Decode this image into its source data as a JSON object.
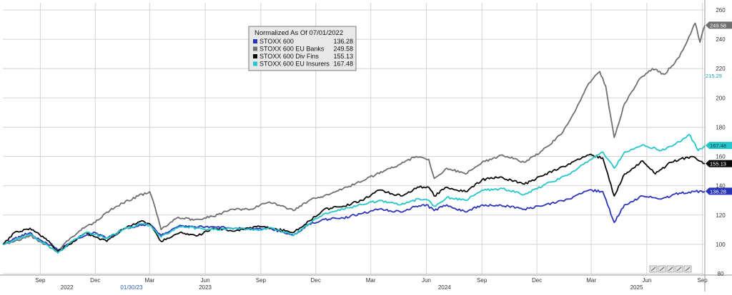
{
  "chart_data": {
    "type": "line",
    "title": "",
    "xlabel": "",
    "ylabel": "",
    "ylim": [
      80,
      260
    ],
    "yticks": [
      80,
      100,
      120,
      140,
      160,
      180,
      200,
      220,
      240,
      260
    ],
    "grid": true,
    "x_range": [
      "2022-07-01",
      "2025-09-05"
    ],
    "month_ticks": [
      {
        "label": "Sep",
        "date": "2022-09-01"
      },
      {
        "label": "Dec",
        "date": "2022-12-01"
      },
      {
        "label": "Mar",
        "date": "2023-03-01"
      },
      {
        "label": "Jun",
        "date": "2023-06-01"
      },
      {
        "label": "Sep",
        "date": "2023-09-01"
      },
      {
        "label": "Dec",
        "date": "2023-12-01"
      },
      {
        "label": "Mar",
        "date": "2024-03-01"
      },
      {
        "label": "Jun",
        "date": "2024-06-01"
      },
      {
        "label": "Sep",
        "date": "2024-09-01"
      },
      {
        "label": "Dec",
        "date": "2024-12-01"
      },
      {
        "label": "Mar",
        "date": "2025-03-01"
      },
      {
        "label": "Jun",
        "date": "2025-06-01"
      },
      {
        "label": "Sep",
        "date": "2025-09-01"
      }
    ],
    "year_labels": [
      {
        "label": "2022",
        "date": "2022-10-15"
      },
      {
        "label": "2023",
        "date": "2023-06-01"
      },
      {
        "label": "2024",
        "date": "2024-07-01"
      },
      {
        "label": "2025",
        "date": "2025-05-15"
      }
    ],
    "cursor_label": {
      "label": "01/30/23",
      "date": "2023-01-30"
    },
    "legend": {
      "header": "Normalized As Of 07/01/2022",
      "placement": "top-center"
    },
    "colors": {
      "grid": "#d4d4d4",
      "axis_text": "#333333",
      "cursor_label": "#2a5db0",
      "legend_bg": "#e8e8e8",
      "legend_border": "#7a7a7a"
    },
    "series": [
      {
        "name": "STOXX 600",
        "color": "#2b33b8",
        "last": "136.28",
        "tag": "136.28",
        "points": [
          [
            "2022-07-01",
            100
          ],
          [
            "2022-07-20",
            104
          ],
          [
            "2022-08-15",
            108
          ],
          [
            "2022-08-31",
            103
          ],
          [
            "2022-09-20",
            99
          ],
          [
            "2022-09-30",
            96
          ],
          [
            "2022-10-20",
            101
          ],
          [
            "2022-11-15",
            106
          ],
          [
            "2022-12-01",
            108
          ],
          [
            "2022-12-20",
            104
          ],
          [
            "2023-01-15",
            110
          ],
          [
            "2023-02-15",
            113
          ],
          [
            "2023-03-01",
            114
          ],
          [
            "2023-03-20",
            106
          ],
          [
            "2023-04-20",
            113
          ],
          [
            "2023-05-15",
            112
          ],
          [
            "2023-06-15",
            112
          ],
          [
            "2023-07-20",
            111
          ],
          [
            "2023-08-15",
            110
          ],
          [
            "2023-09-15",
            111
          ],
          [
            "2023-10-25",
            106
          ],
          [
            "2023-11-20",
            114
          ],
          [
            "2023-12-15",
            117
          ],
          [
            "2024-01-15",
            118
          ],
          [
            "2024-02-15",
            121
          ],
          [
            "2024-03-15",
            124
          ],
          [
            "2024-04-20",
            122
          ],
          [
            "2024-05-15",
            126
          ],
          [
            "2024-06-01",
            127
          ],
          [
            "2024-06-14",
            123
          ],
          [
            "2024-07-05",
            127
          ],
          [
            "2024-08-05",
            122
          ],
          [
            "2024-08-25",
            126
          ],
          [
            "2024-09-30",
            127
          ],
          [
            "2024-11-10",
            124
          ],
          [
            "2024-12-15",
            127
          ],
          [
            "2025-01-25",
            131
          ],
          [
            "2025-02-25",
            137
          ],
          [
            "2025-03-20",
            136
          ],
          [
            "2025-04-08",
            115
          ],
          [
            "2025-04-25",
            127
          ],
          [
            "2025-05-25",
            133
          ],
          [
            "2025-06-25",
            131
          ],
          [
            "2025-07-25",
            135
          ],
          [
            "2025-08-20",
            136
          ],
          [
            "2025-09-05",
            136.28
          ]
        ]
      },
      {
        "name": "STOXX 600 EU Banks",
        "color": "#6f6f6f",
        "last": "249.58",
        "tag": "249.58",
        "points": [
          [
            "2022-07-01",
            100
          ],
          [
            "2022-07-20",
            102
          ],
          [
            "2022-08-15",
            106
          ],
          [
            "2022-09-10",
            100
          ],
          [
            "2022-09-30",
            95
          ],
          [
            "2022-10-20",
            104
          ],
          [
            "2022-11-15",
            112
          ],
          [
            "2022-12-01",
            115
          ],
          [
            "2022-12-20",
            122
          ],
          [
            "2023-01-15",
            128
          ],
          [
            "2023-02-10",
            133
          ],
          [
            "2023-03-01",
            136
          ],
          [
            "2023-03-10",
            125
          ],
          [
            "2023-03-20",
            110
          ],
          [
            "2023-04-15",
            118
          ],
          [
            "2023-05-15",
            117
          ],
          [
            "2023-06-15",
            119
          ],
          [
            "2023-07-15",
            124
          ],
          [
            "2023-08-15",
            124
          ],
          [
            "2023-09-15",
            129
          ],
          [
            "2023-10-25",
            123
          ],
          [
            "2023-11-20",
            130
          ],
          [
            "2023-12-20",
            134
          ],
          [
            "2024-01-15",
            138
          ],
          [
            "2024-02-15",
            143
          ],
          [
            "2024-03-10",
            148
          ],
          [
            "2024-04-15",
            154
          ],
          [
            "2024-05-15",
            160
          ],
          [
            "2024-06-05",
            158
          ],
          [
            "2024-06-14",
            145
          ],
          [
            "2024-07-05",
            152
          ],
          [
            "2024-08-05",
            148
          ],
          [
            "2024-09-01",
            156
          ],
          [
            "2024-10-05",
            161
          ],
          [
            "2024-11-10",
            156
          ],
          [
            "2024-12-10",
            164
          ],
          [
            "2025-01-10",
            175
          ],
          [
            "2025-02-01",
            190
          ],
          [
            "2025-02-25",
            210
          ],
          [
            "2025-03-15",
            218
          ],
          [
            "2025-03-25",
            208
          ],
          [
            "2025-04-08",
            173
          ],
          [
            "2025-04-25",
            196
          ],
          [
            "2025-05-20",
            213
          ],
          [
            "2025-06-10",
            220
          ],
          [
            "2025-06-30",
            216
          ],
          [
            "2025-07-25",
            228
          ],
          [
            "2025-08-10",
            242
          ],
          [
            "2025-08-20",
            251
          ],
          [
            "2025-08-28",
            238
          ],
          [
            "2025-09-05",
            249.58
          ]
        ]
      },
      {
        "name": "STOXX 600 Div Fins",
        "color": "#0a0a0a",
        "last": "155.13",
        "tag": "155.13",
        "points": [
          [
            "2022-07-01",
            100
          ],
          [
            "2022-07-20",
            108
          ],
          [
            "2022-08-15",
            111
          ],
          [
            "2022-09-10",
            104
          ],
          [
            "2022-09-30",
            95
          ],
          [
            "2022-10-20",
            100
          ],
          [
            "2022-11-15",
            108
          ],
          [
            "2022-12-01",
            105
          ],
          [
            "2022-12-20",
            102
          ],
          [
            "2023-01-15",
            110
          ],
          [
            "2023-02-15",
            116
          ],
          [
            "2023-03-01",
            114
          ],
          [
            "2023-03-20",
            102
          ],
          [
            "2023-04-20",
            108
          ],
          [
            "2023-05-20",
            106
          ],
          [
            "2023-06-15",
            111
          ],
          [
            "2023-07-20",
            109
          ],
          [
            "2023-08-25",
            112
          ],
          [
            "2023-09-20",
            111
          ],
          [
            "2023-10-25",
            108
          ],
          [
            "2023-11-20",
            116
          ],
          [
            "2023-12-15",
            124
          ],
          [
            "2024-01-15",
            126
          ],
          [
            "2024-02-15",
            130
          ],
          [
            "2024-03-15",
            137
          ],
          [
            "2024-04-20",
            133
          ],
          [
            "2024-05-20",
            139
          ],
          [
            "2024-06-05",
            139
          ],
          [
            "2024-06-14",
            133
          ],
          [
            "2024-07-05",
            139
          ],
          [
            "2024-08-05",
            136
          ],
          [
            "2024-09-01",
            144
          ],
          [
            "2024-10-01",
            146
          ],
          [
            "2024-11-10",
            141
          ],
          [
            "2024-12-15",
            148
          ],
          [
            "2025-01-20",
            154
          ],
          [
            "2025-02-25",
            161
          ],
          [
            "2025-03-20",
            159
          ],
          [
            "2025-04-08",
            133
          ],
          [
            "2025-04-25",
            148
          ],
          [
            "2025-05-25",
            157
          ],
          [
            "2025-06-15",
            148
          ],
          [
            "2025-07-10",
            156
          ],
          [
            "2025-07-25",
            158
          ],
          [
            "2025-08-15",
            160
          ],
          [
            "2025-09-05",
            155.13
          ]
        ]
      },
      {
        "name": "STOXX 600 EU Insurers",
        "color": "#24c6cc",
        "last": "167.48",
        "tag": "167.48",
        "points": [
          [
            "2022-07-01",
            100
          ],
          [
            "2022-07-20",
            103
          ],
          [
            "2022-08-15",
            107
          ],
          [
            "2022-09-10",
            100
          ],
          [
            "2022-09-30",
            94
          ],
          [
            "2022-10-20",
            101
          ],
          [
            "2022-11-15",
            108
          ],
          [
            "2022-12-01",
            107
          ],
          [
            "2022-12-20",
            104
          ],
          [
            "2023-01-15",
            110
          ],
          [
            "2023-02-15",
            114
          ],
          [
            "2023-03-01",
            113
          ],
          [
            "2023-03-20",
            105
          ],
          [
            "2023-04-20",
            112
          ],
          [
            "2023-05-20",
            111
          ],
          [
            "2023-06-20",
            110
          ],
          [
            "2023-07-20",
            111
          ],
          [
            "2023-08-25",
            110
          ],
          [
            "2023-09-20",
            111
          ],
          [
            "2023-10-25",
            106
          ],
          [
            "2023-11-20",
            114
          ],
          [
            "2023-12-15",
            121
          ],
          [
            "2024-01-15",
            124
          ],
          [
            "2024-02-15",
            127
          ],
          [
            "2024-03-15",
            130
          ],
          [
            "2024-04-20",
            127
          ],
          [
            "2024-05-20",
            131
          ],
          [
            "2024-06-05",
            130
          ],
          [
            "2024-06-14",
            126
          ],
          [
            "2024-07-05",
            132
          ],
          [
            "2024-08-05",
            130
          ],
          [
            "2024-09-01",
            137
          ],
          [
            "2024-10-05",
            138
          ],
          [
            "2024-11-10",
            134
          ],
          [
            "2024-12-15",
            141
          ],
          [
            "2025-01-20",
            147
          ],
          [
            "2025-02-25",
            157
          ],
          [
            "2025-03-20",
            163
          ],
          [
            "2025-04-08",
            152
          ],
          [
            "2025-04-25",
            163
          ],
          [
            "2025-05-25",
            168
          ],
          [
            "2025-06-25",
            164
          ],
          [
            "2025-07-25",
            170
          ],
          [
            "2025-08-10",
            175
          ],
          [
            "2025-08-25",
            164
          ],
          [
            "2025-09-05",
            167.48
          ]
        ]
      }
    ],
    "extra_tag": {
      "label": "215.29",
      "color": "#1f9aa6",
      "value": 215.29
    }
  }
}
